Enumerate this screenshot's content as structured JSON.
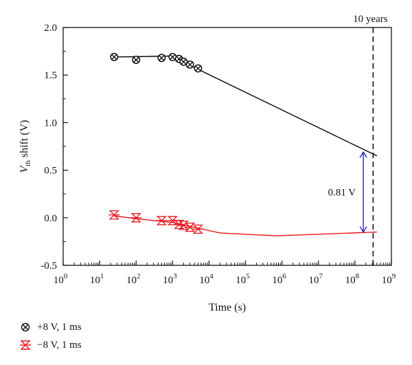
{
  "chart_data": {
    "type": "scatter",
    "xlabel": "Time (s)",
    "ylabel_main": "V",
    "ylabel_sub": "th",
    "ylabel_rest": " shift (V)",
    "x_scale": "log",
    "xlim": [
      1,
      1000000000
    ],
    "ylim": [
      -0.5,
      2.0
    ],
    "x_ticks": [
      {
        "value": 1,
        "base": "10",
        "exp": "0"
      },
      {
        "value": 10,
        "base": "10",
        "exp": "1"
      },
      {
        "value": 100,
        "base": "10",
        "exp": "2"
      },
      {
        "value": 1000,
        "base": "10",
        "exp": "3"
      },
      {
        "value": 10000,
        "base": "10",
        "exp": "4"
      },
      {
        "value": 100000,
        "base": "10",
        "exp": "5"
      },
      {
        "value": 1000000,
        "base": "10",
        "exp": "6"
      },
      {
        "value": 10000000,
        "base": "10",
        "exp": "7"
      },
      {
        "value": 100000000,
        "base": "10",
        "exp": "8"
      },
      {
        "value": 1000000000,
        "base": "10",
        "exp": "9"
      }
    ],
    "y_ticks": [
      "-0.5",
      "0.0",
      "0.5",
      "1.0",
      "1.5",
      "2.0"
    ],
    "y_tick_values": [
      -0.5,
      0.0,
      0.5,
      1.0,
      1.5,
      2.0
    ],
    "grid": false,
    "legend_position": "bottom-left",
    "series": [
      {
        "name": "+8 V, 1 ms",
        "marker": "circle-x",
        "color": "#000000",
        "points": [
          {
            "x": 25,
            "y": 1.69
          },
          {
            "x": 100,
            "y": 1.66
          },
          {
            "x": 500,
            "y": 1.68
          },
          {
            "x": 1000,
            "y": 1.69
          },
          {
            "x": 1500,
            "y": 1.67
          },
          {
            "x": 2000,
            "y": 1.64
          },
          {
            "x": 3000,
            "y": 1.61
          },
          {
            "x": 5000,
            "y": 1.57
          }
        ],
        "fit": [
          {
            "x": 25,
            "y": 1.69
          },
          {
            "x": 1000,
            "y": 1.7
          },
          {
            "x": 5000,
            "y": 1.56
          },
          {
            "x": 400000000,
            "y": 0.65
          }
        ]
      },
      {
        "name": "−8 V, 1 ms",
        "marker": "hourglass",
        "color": "#e8141c",
        "points": [
          {
            "x": 25,
            "y": 0.03
          },
          {
            "x": 100,
            "y": 0.0
          },
          {
            "x": 500,
            "y": -0.03
          },
          {
            "x": 1000,
            "y": -0.03
          },
          {
            "x": 1500,
            "y": -0.07
          },
          {
            "x": 2000,
            "y": -0.08
          },
          {
            "x": 3000,
            "y": -0.1
          },
          {
            "x": 5000,
            "y": -0.12
          }
        ],
        "fit": [
          {
            "x": 25,
            "y": 0.02
          },
          {
            "x": 100,
            "y": -0.01
          },
          {
            "x": 1000,
            "y": -0.05
          },
          {
            "x": 5000,
            "y": -0.11
          },
          {
            "x": 20000,
            "y": -0.16
          },
          {
            "x": 700000,
            "y": -0.19
          },
          {
            "x": 400000000,
            "y": -0.15
          }
        ]
      }
    ],
    "annotations": {
      "ten_years_label": "10 years",
      "ten_years_x": 315360000,
      "shift_label": "0.81 V",
      "arrow_x": 170000000,
      "arrow_top_y": 0.69,
      "arrow_bottom_y": -0.15,
      "arrow_color": "#1f1fc8"
    }
  }
}
